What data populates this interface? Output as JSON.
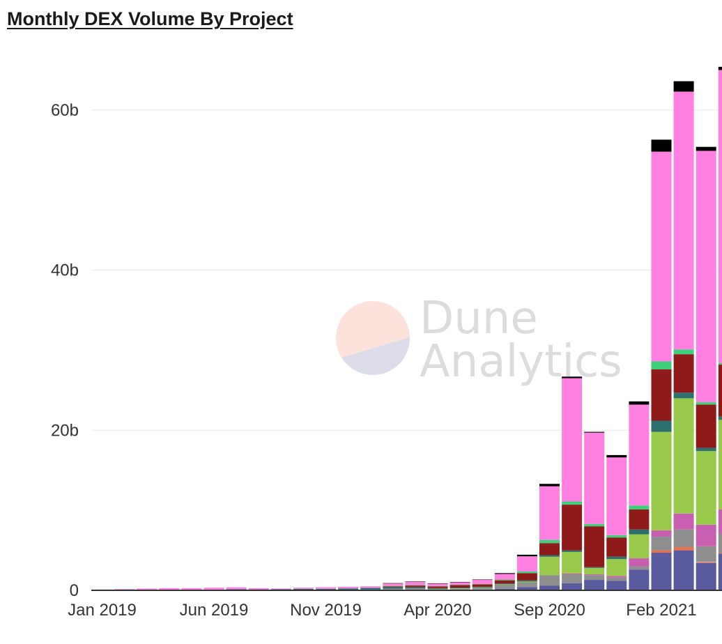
{
  "header": {
    "title": "Monthly DEX Volume By Project"
  },
  "watermark": {
    "line1": "Dune",
    "line2": "Analytics"
  },
  "colors": {
    "background": "#ffffff",
    "grid": "#e8e8e8",
    "axis": "#333333",
    "watermark_top": "#fde2dc",
    "watermark_bottom": "#dcdcea"
  },
  "chart_data": {
    "type": "bar",
    "stacked": true,
    "title": "Monthly DEX Volume By Project",
    "xlabel": "",
    "ylabel": "",
    "ylim": [
      0,
      68
    ],
    "y_ticks": [
      0,
      20,
      40,
      60
    ],
    "y_tick_labels": [
      "0",
      "20b",
      "40b",
      "60b"
    ],
    "y_unit": "b",
    "grid": true,
    "legend": "none",
    "categories": [
      "Jan 2019",
      "Feb 2019",
      "Mar 2019",
      "Apr 2019",
      "May 2019",
      "Jun 2019",
      "Jul 2019",
      "Aug 2019",
      "Sep 2019",
      "Oct 2019",
      "Nov 2019",
      "Dec 2019",
      "Jan 2020",
      "Feb 2020",
      "Mar 2020",
      "Apr 2020",
      "May 2020",
      "Jun 2020",
      "Jul 2020",
      "Aug 2020",
      "Sep 2020",
      "Oct 2020",
      "Nov 2020",
      "Dec 2020",
      "Jan 2021",
      "Feb 2021",
      "Mar 2021",
      "Apr 2021",
      "May 2021"
    ],
    "x_tick_labels": [
      "Jan 2019",
      "Jun 2019",
      "Nov 2019",
      "Apr 2020",
      "Sep 2020",
      "Feb 2021"
    ],
    "series": [
      {
        "color": "#5a5a9f",
        "values": [
          0.05,
          0.05,
          0.05,
          0.05,
          0.05,
          0.05,
          0.05,
          0.05,
          0.05,
          0.05,
          0.05,
          0.05,
          0.05,
          0.1,
          0.1,
          0.05,
          0.1,
          0.1,
          0.2,
          0.4,
          0.6,
          0.9,
          1.3,
          1.2,
          2.6,
          4.7,
          5.0,
          3.4,
          4.6
        ]
      },
      {
        "color": "#e8734a",
        "values": [
          0,
          0,
          0,
          0,
          0,
          0,
          0,
          0,
          0,
          0,
          0,
          0,
          0,
          0,
          0,
          0,
          0,
          0,
          0,
          0,
          0,
          0,
          0,
          0,
          0,
          0.3,
          0.4,
          0.1,
          0.1
        ]
      },
      {
        "color": "#a69ba6",
        "values": [
          0,
          0,
          0,
          0,
          0,
          0,
          0,
          0,
          0,
          0,
          0,
          0,
          0,
          0,
          0,
          0,
          0,
          0,
          0,
          0,
          0,
          0,
          0,
          0,
          0,
          0,
          0,
          0.1,
          0
        ]
      },
      {
        "color": "#8e8e8e",
        "values": [
          0.01,
          0.01,
          0.02,
          0.02,
          0.03,
          0.03,
          0.03,
          0.02,
          0.03,
          0.03,
          0.04,
          0.04,
          0.05,
          0.1,
          0.15,
          0.1,
          0.1,
          0.2,
          0.5,
          0.6,
          1.3,
          1.1,
          0.6,
          0.4,
          0.4,
          1.7,
          2.2,
          1.9,
          2.4
        ]
      },
      {
        "color": "#c85fb0",
        "values": [
          0,
          0,
          0,
          0,
          0,
          0,
          0,
          0,
          0,
          0,
          0,
          0,
          0,
          0,
          0,
          0,
          0,
          0,
          0,
          0,
          0,
          0.1,
          0.1,
          0.2,
          1.0,
          0.8,
          2.0,
          2.7,
          3.0
        ]
      },
      {
        "color": "#99c94a",
        "values": [
          0,
          0,
          0,
          0,
          0,
          0,
          0,
          0,
          0,
          0,
          0,
          0,
          0,
          0,
          0,
          0.03,
          0.05,
          0.05,
          0.05,
          0.1,
          2.3,
          2.7,
          0.8,
          2.1,
          3.0,
          12.3,
          14.4,
          9.2,
          11.2
        ]
      },
      {
        "color": "#2d6e6e",
        "values": [
          0,
          0,
          0,
          0,
          0,
          0,
          0.05,
          0.05,
          0.05,
          0.1,
          0.1,
          0.15,
          0.2,
          0.2,
          0.15,
          0.1,
          0.1,
          0.1,
          0.1,
          0.15,
          0.2,
          0.2,
          0.1,
          0.3,
          0.6,
          1.4,
          0.7,
          0.4,
          0.4
        ]
      },
      {
        "color": "#8f1a1a",
        "values": [
          0,
          0,
          0,
          0,
          0,
          0,
          0,
          0,
          0,
          0,
          0,
          0,
          0,
          0.1,
          0.2,
          0.2,
          0.3,
          0.3,
          0.4,
          0.9,
          1.5,
          5.7,
          5.1,
          2.4,
          2.5,
          6.4,
          4.8,
          5.4,
          6.5
        ]
      },
      {
        "color": "#3ecf7a",
        "values": [
          0,
          0,
          0,
          0,
          0,
          0,
          0,
          0,
          0,
          0,
          0,
          0,
          0,
          0.05,
          0.05,
          0.05,
          0.05,
          0.05,
          0.1,
          0.2,
          0.4,
          0.4,
          0.3,
          0.3,
          0.5,
          1.0,
          0.6,
          0.3,
          0.2
        ]
      },
      {
        "color": "#ff80e0",
        "values": [
          0.05,
          0.1,
          0.15,
          0.2,
          0.2,
          0.25,
          0.25,
          0.15,
          0.1,
          0.15,
          0.2,
          0.2,
          0.2,
          0.3,
          0.4,
          0.3,
          0.3,
          0.5,
          0.7,
          1.9,
          6.7,
          15.4,
          11.4,
          9.7,
          12.6,
          26.2,
          32.2,
          31.4,
          36.6
        ]
      },
      {
        "color": "#000000",
        "values": [
          0,
          0,
          0,
          0,
          0,
          0,
          0,
          0,
          0,
          0,
          0,
          0,
          0,
          0.05,
          0.05,
          0.05,
          0.05,
          0.05,
          0.1,
          0.2,
          0.3,
          0.2,
          0.1,
          0.3,
          0.4,
          1.5,
          1.3,
          0.5,
          0.4
        ]
      }
    ]
  }
}
